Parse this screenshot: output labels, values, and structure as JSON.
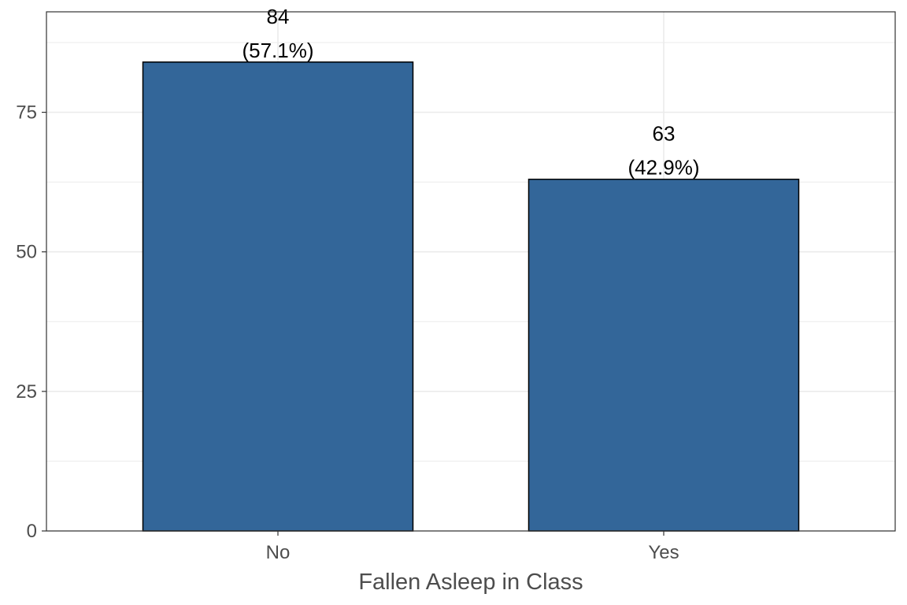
{
  "chart_data": {
    "type": "bar",
    "title": "",
    "xlabel": "Fallen Asleep in Class",
    "ylabel": "",
    "categories": [
      "No",
      "Yes"
    ],
    "values": [
      84,
      63
    ],
    "labels": [
      {
        "count": "84",
        "percent": "(57.1%)"
      },
      {
        "count": "63",
        "percent": "(42.9%)"
      }
    ],
    "ylim": [
      0,
      93
    ],
    "yticks": [
      0,
      25,
      50,
      75
    ],
    "yticklabels": [
      "0",
      "25",
      "50",
      "75"
    ],
    "grid": true,
    "legend": "none",
    "colors": {
      "bar_fill": "#336699",
      "bar_outline": "#000000",
      "grid": "#ebebeb",
      "panel_border": "#333333"
    }
  }
}
